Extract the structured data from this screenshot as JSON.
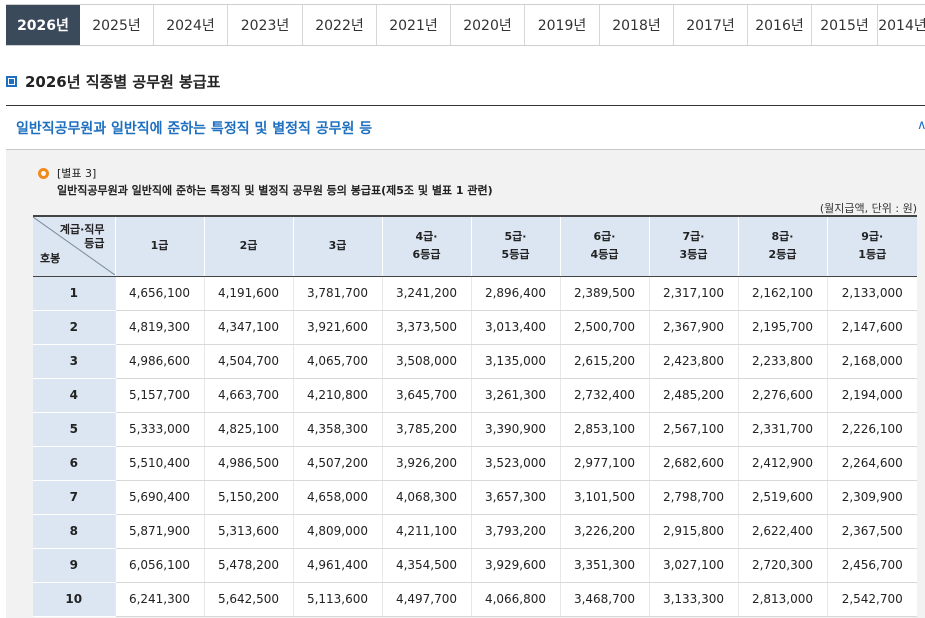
{
  "year_tabs": [
    "2026년",
    "2025년",
    "2024년",
    "2023년",
    "2022년",
    "2021년",
    "2020년",
    "2019년",
    "2018년",
    "2017년",
    "2016년",
    "2015년",
    "2014년"
  ],
  "active_year_index": 0,
  "page_title": "2026년 직종별 공무원 봉급표",
  "section": {
    "title": "일반직공무원과 일반직에 준하는 특정직 및 별정직 공무원 등",
    "toggle": "∧"
  },
  "annex": {
    "title": "[별표 3]",
    "description": "일반직공무원과 일반직에 준하는 특정직 및 별정직 공무원 등의 봉급표(제5조 및 별표 1 관련)",
    "unit": "(월지급액, 단위 : 원)"
  },
  "table": {
    "corner_top_line1": "계급·직무",
    "corner_top_line2": "등급",
    "corner_bottom": "호봉",
    "columns": [
      {
        "line1": "1급",
        "line2": ""
      },
      {
        "line1": "2급",
        "line2": ""
      },
      {
        "line1": "3급",
        "line2": ""
      },
      {
        "line1": "4급·",
        "line2": "6등급"
      },
      {
        "line1": "5급·",
        "line2": "5등급"
      },
      {
        "line1": "6급·",
        "line2": "4등급"
      },
      {
        "line1": "7급·",
        "line2": "3등급"
      },
      {
        "line1": "8급·",
        "line2": "2등급"
      },
      {
        "line1": "9급·",
        "line2": "1등급"
      }
    ],
    "rows": [
      {
        "step": "1",
        "values": [
          "4,656,100",
          "4,191,600",
          "3,781,700",
          "3,241,200",
          "2,896,400",
          "2,389,500",
          "2,317,100",
          "2,162,100",
          "2,133,000"
        ]
      },
      {
        "step": "2",
        "values": [
          "4,819,300",
          "4,347,100",
          "3,921,600",
          "3,373,500",
          "3,013,400",
          "2,500,700",
          "2,367,900",
          "2,195,700",
          "2,147,600"
        ]
      },
      {
        "step": "3",
        "values": [
          "4,986,600",
          "4,504,700",
          "4,065,700",
          "3,508,000",
          "3,135,000",
          "2,615,200",
          "2,423,800",
          "2,233,800",
          "2,168,000"
        ]
      },
      {
        "step": "4",
        "values": [
          "5,157,700",
          "4,663,700",
          "4,210,800",
          "3,645,700",
          "3,261,300",
          "2,732,400",
          "2,485,200",
          "2,276,600",
          "2,194,000"
        ]
      },
      {
        "step": "5",
        "values": [
          "5,333,000",
          "4,825,100",
          "4,358,300",
          "3,785,200",
          "3,390,900",
          "2,853,100",
          "2,567,100",
          "2,331,700",
          "2,226,100"
        ]
      },
      {
        "step": "6",
        "values": [
          "5,510,400",
          "4,986,500",
          "4,507,200",
          "3,926,200",
          "3,523,000",
          "2,977,100",
          "2,682,600",
          "2,412,900",
          "2,264,600"
        ]
      },
      {
        "step": "7",
        "values": [
          "5,690,400",
          "5,150,200",
          "4,658,000",
          "4,068,300",
          "3,657,300",
          "3,101,500",
          "2,798,700",
          "2,519,600",
          "2,309,900"
        ]
      },
      {
        "step": "8",
        "values": [
          "5,871,900",
          "5,313,600",
          "4,809,000",
          "4,211,100",
          "3,793,200",
          "3,226,200",
          "2,915,800",
          "2,622,400",
          "2,367,500"
        ]
      },
      {
        "step": "9",
        "values": [
          "6,056,100",
          "5,478,200",
          "4,961,400",
          "4,354,500",
          "3,929,600",
          "3,351,300",
          "3,027,100",
          "2,720,300",
          "2,456,700"
        ]
      },
      {
        "step": "10",
        "values": [
          "6,241,300",
          "5,642,500",
          "5,113,600",
          "4,497,700",
          "4,066,800",
          "3,468,700",
          "3,133,300",
          "2,813,000",
          "2,542,700"
        ]
      }
    ]
  }
}
